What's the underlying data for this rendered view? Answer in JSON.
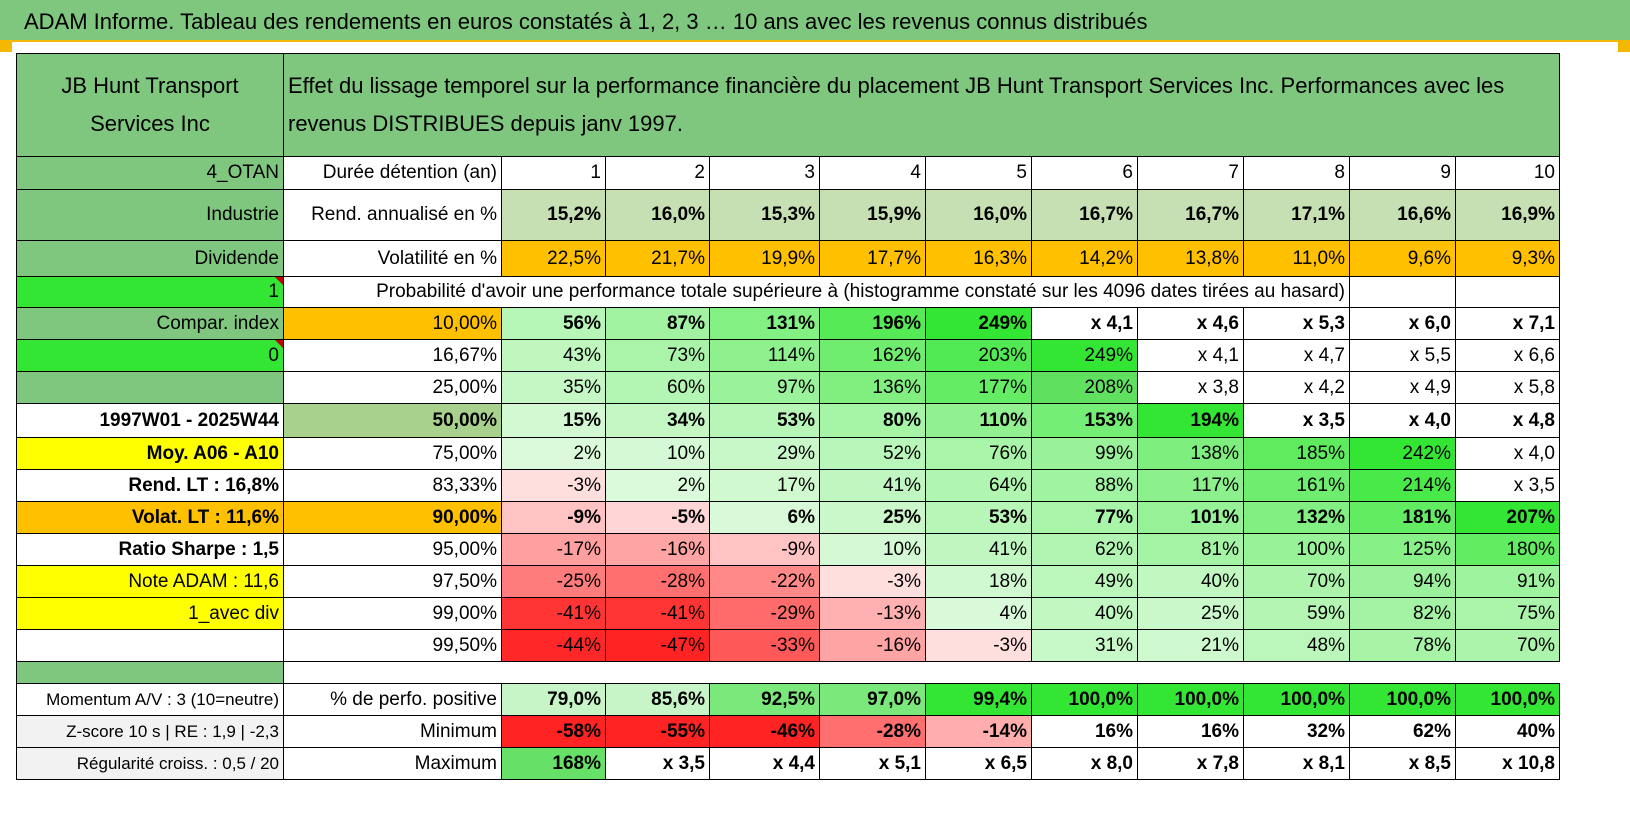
{
  "title": "ADAM Informe. Tableau des rendements en euros constatés à 1, 2, 3 … 10 ans avec les revenus connus distribués",
  "header": {
    "name": "JB Hunt Transport Services Inc",
    "description": "Effet du lissage temporel sur la performance financière du placement JB Hunt Transport Services Inc. Performances avec les revenus DISTRIBUES depuis janv 1997."
  },
  "durations_row": {
    "left": "4_OTAN",
    "label": "Durée détention (an)",
    "values": [
      "1",
      "2",
      "3",
      "4",
      "5",
      "6",
      "7",
      "8",
      "9",
      "10"
    ]
  },
  "rend_row": {
    "left": "Industrie",
    "label": "Rend. annualisé en %",
    "values": [
      "15,2%",
      "16,0%",
      "15,3%",
      "15,9%",
      "16,0%",
      "16,7%",
      "16,7%",
      "17,1%",
      "16,6%",
      "16,9%"
    ]
  },
  "vol_row": {
    "left": "Dividende",
    "label": "Volatilité en %",
    "values": [
      "22,5%",
      "21,7%",
      "19,9%",
      "17,7%",
      "16,3%",
      "14,2%",
      "13,8%",
      "11,0%",
      "9,6%",
      "9,3%"
    ]
  },
  "prob_row": {
    "left": "1",
    "label": "Probabilité d'avoir une performance totale supérieure à (histogramme constaté sur les 4096 dates tirées au hasard)"
  },
  "prob_rows": [
    {
      "left": "Compar. index",
      "pct": "10,00%",
      "values": [
        "56%",
        "87%",
        "131%",
        "196%",
        "249%",
        "x 4,1",
        "x 4,6",
        "x 5,3",
        "x 6,0",
        "x 7,1"
      ]
    },
    {
      "left": "0",
      "pct": "16,67%",
      "values": [
        "43%",
        "73%",
        "114%",
        "162%",
        "203%",
        "249%",
        "x 4,1",
        "x 4,7",
        "x 5,5",
        "x 6,6"
      ]
    },
    {
      "left": "",
      "pct": "25,00%",
      "values": [
        "35%",
        "60%",
        "97%",
        "136%",
        "177%",
        "208%",
        "x 3,8",
        "x 4,2",
        "x 4,9",
        "x 5,8"
      ]
    },
    {
      "left": "1997W01 - 2025W44",
      "pct": "50,00%",
      "values": [
        "15%",
        "34%",
        "53%",
        "80%",
        "110%",
        "153%",
        "194%",
        "x 3,5",
        "x 4,0",
        "x 4,8"
      ]
    },
    {
      "left": "Moy. A06 - A10",
      "pct": "75,00%",
      "values": [
        "2%",
        "10%",
        "29%",
        "52%",
        "76%",
        "99%",
        "138%",
        "185%",
        "242%",
        "x 4,0"
      ]
    },
    {
      "left": "Rend. LT :    16,8%",
      "pct": "83,33%",
      "values": [
        "-3%",
        "2%",
        "17%",
        "41%",
        "64%",
        "88%",
        "117%",
        "161%",
        "214%",
        "x 3,5"
      ]
    },
    {
      "left": "Volat. LT :    11,6%",
      "pct": "90,00%",
      "values": [
        "-9%",
        "-5%",
        "6%",
        "25%",
        "53%",
        "77%",
        "101%",
        "132%",
        "181%",
        "207%"
      ]
    },
    {
      "left": "Ratio Sharpe :     1,5",
      "pct": "95,00%",
      "values": [
        "-17%",
        "-16%",
        "-9%",
        "10%",
        "41%",
        "62%",
        "81%",
        "100%",
        "125%",
        "180%"
      ]
    },
    {
      "left": "Note ADAM : 11,6",
      "pct": "97,50%",
      "values": [
        "-25%",
        "-28%",
        "-22%",
        "-3%",
        "18%",
        "49%",
        "40%",
        "70%",
        "94%",
        "91%"
      ]
    },
    {
      "left": "1_avec div",
      "pct": "99,00%",
      "values": [
        "-41%",
        "-41%",
        "-29%",
        "-13%",
        "4%",
        "40%",
        "25%",
        "59%",
        "82%",
        "75%"
      ]
    },
    {
      "left": "",
      "pct": "99,50%",
      "values": [
        "-44%",
        "-47%",
        "-33%",
        "-16%",
        "-3%",
        "31%",
        "21%",
        "48%",
        "78%",
        "70%"
      ]
    }
  ],
  "progress_fraction": 1.0,
  "stats_rows": [
    {
      "left": "Momentum A/V : 3 (10=neutre)",
      "label": "% de perfo. positive",
      "values": [
        "79,0%",
        "85,6%",
        "92,5%",
        "97,0%",
        "99,4%",
        "100,0%",
        "100,0%",
        "100,0%",
        "100,0%",
        "100,0%"
      ]
    },
    {
      "left": "Z-score 10 s | RE : 1,9 | -2,3",
      "label": "Minimum",
      "values": [
        "-58%",
        "-55%",
        "-46%",
        "-28%",
        "-14%",
        "16%",
        "16%",
        "32%",
        "62%",
        "40%"
      ]
    },
    {
      "left": "Régularité croiss. : 0,5 / 20",
      "label": "Maximum",
      "values": [
        "168%",
        "x 3,5",
        "x 4,4",
        "x 5,1",
        "x 6,5",
        "x 8,0",
        "x 7,8",
        "x 8,1",
        "x 8,5",
        "x 10,8"
      ]
    }
  ],
  "colors": {
    "green_header": "#7fc77f",
    "bright_green": "#33e633",
    "yellow": "#ffff00",
    "orange": "#ffc000",
    "rend_green": "#c6e0b4",
    "left_red_text": "#e00000"
  }
}
